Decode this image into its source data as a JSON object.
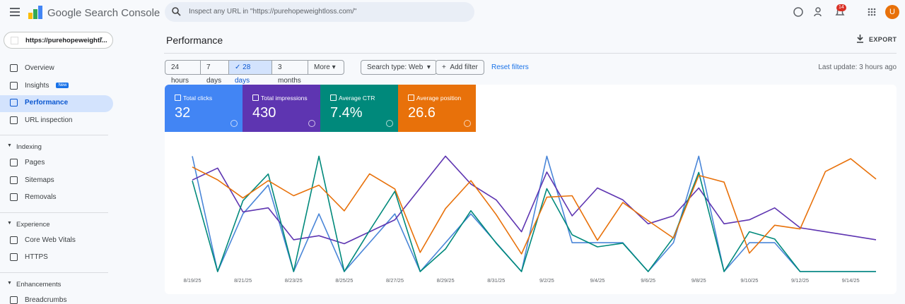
{
  "header": {
    "product": "Google Search Console",
    "search_placeholder": "Inspect any URL in \"https://purehopeweightloss.com/\"",
    "notification_count": "14",
    "avatar": "U"
  },
  "property": "https://purehopeweightl...",
  "nav": [
    {
      "section": null,
      "items": [
        {
          "label": "Overview"
        },
        {
          "label": "Insights",
          "badge": "New"
        },
        {
          "label": "Performance",
          "selected": true
        },
        {
          "label": "URL inspection"
        }
      ]
    },
    {
      "section": "Indexing",
      "items": [
        {
          "label": "Pages"
        },
        {
          "label": "Sitemaps"
        },
        {
          "label": "Removals"
        }
      ]
    },
    {
      "section": "Experience",
      "items": [
        {
          "label": "Core Web Vitals"
        },
        {
          "label": "HTTPS"
        }
      ]
    },
    {
      "section": "Enhancements",
      "items": [
        {
          "label": "Breadcrumbs"
        }
      ]
    }
  ],
  "page": {
    "title": "Performance",
    "export": "EXPORT",
    "date_filters": [
      "24 hours",
      "7 days",
      "28 days",
      "3 months",
      "More"
    ],
    "selected_date_filter": 2,
    "search_type": "Search type: Web",
    "add_filter": "Add filter",
    "reset_filters": "Reset filters",
    "last_update": "Last update: 3 hours ago"
  },
  "chart_data": {
    "type": "line",
    "categories": [
      "8/19/25",
      null,
      "8/21/25",
      null,
      "8/23/25",
      null,
      "8/25/25",
      null,
      "8/27/25",
      null,
      "8/29/25",
      null,
      "8/31/25",
      null,
      "9/2/25",
      null,
      "9/4/25",
      null,
      "9/6/25",
      null,
      "9/8/25",
      null,
      "9/10/25",
      null,
      "9/12/25",
      null,
      "9/14/25",
      null
    ],
    "series": [
      {
        "name": "Total clicks",
        "summary": "32",
        "color": "#4a86d8",
        "card_color": "#4285f4",
        "values": [
          4,
          0,
          2,
          3,
          0,
          2,
          0,
          1,
          2,
          0,
          1,
          2,
          1,
          0,
          4,
          1,
          1,
          1,
          0,
          1,
          4,
          0,
          1,
          1,
          0,
          0,
          0,
          0
        ]
      },
      {
        "name": "Total impressions",
        "summary": "430",
        "color": "#5e35b1",
        "card_color": "#5e35b1",
        "values": [
          23,
          26,
          15,
          16,
          8,
          9,
          7,
          10,
          13,
          21,
          29,
          22,
          18,
          10,
          25,
          14,
          21,
          18,
          12,
          14,
          21,
          12,
          13,
          16,
          11,
          10,
          9,
          8
        ]
      },
      {
        "name": "Average CTR",
        "summary": "7.4%",
        "color": "#00897b",
        "card_color": "#00897b",
        "values": [
          17.3,
          0,
          13.5,
          18.6,
          0,
          22,
          0,
          7.8,
          15.3,
          0,
          4.3,
          11.6,
          5.4,
          0,
          15.8,
          7,
          4.7,
          5.4,
          0,
          6.5,
          18.9,
          0,
          7.6,
          6.2,
          0,
          0,
          0,
          0
        ]
      },
      {
        "name": "Average position",
        "summary": "26.6",
        "color": "#e8710a",
        "card_color": "#e8710a",
        "reversed": true,
        "values": [
          22.4,
          24.1,
          26.5,
          24.2,
          26.2,
          24.8,
          28.2,
          23.3,
          25.3,
          33.7,
          27.9,
          24.2,
          28.7,
          33.9,
          26.4,
          26.2,
          32.1,
          27.1,
          29.5,
          31.8,
          23.5,
          24.4,
          33.8,
          30.1,
          30.6,
          23.0,
          21.3,
          24.0
        ]
      }
    ]
  }
}
